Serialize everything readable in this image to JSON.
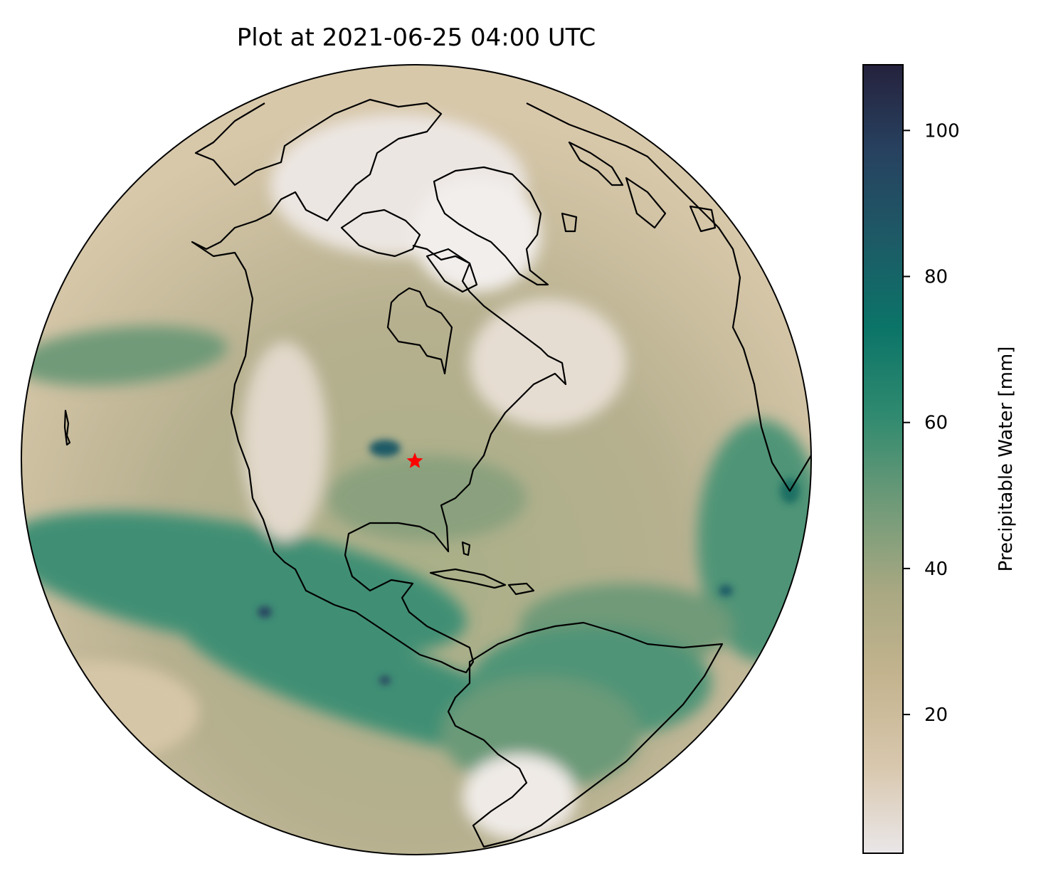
{
  "title": "Plot at 2021-06-25 04:00 UTC",
  "map": {
    "projection": "orthographic",
    "variable": "precipitable water",
    "marker": {
      "symbol": "star",
      "color": "#ff0000"
    },
    "colors": {
      "ocean_high": "#3f8f74",
      "ocean_mid": "#7fa684",
      "land_low": "#d8c8aa",
      "arctic": "#ece6e2",
      "coastline": "#000000",
      "tropics_deep": "#1e6f63"
    }
  },
  "colorbar": {
    "label": "Precipitable Water [mm]",
    "range": [
      1,
      109
    ],
    "ticks": [
      {
        "value": 20,
        "label": "20"
      },
      {
        "value": 40,
        "label": "40"
      },
      {
        "value": 60,
        "label": "60"
      },
      {
        "value": 80,
        "label": "80"
      },
      {
        "value": 100,
        "label": "100"
      }
    ],
    "colormap": [
      "#eae6e8",
      "#d8c7ad",
      "#c4b48f",
      "#a8a882",
      "#6f9a78",
      "#2f8a6f",
      "#0b7468",
      "#1d5a66",
      "#274260",
      "#25223d"
    ]
  }
}
